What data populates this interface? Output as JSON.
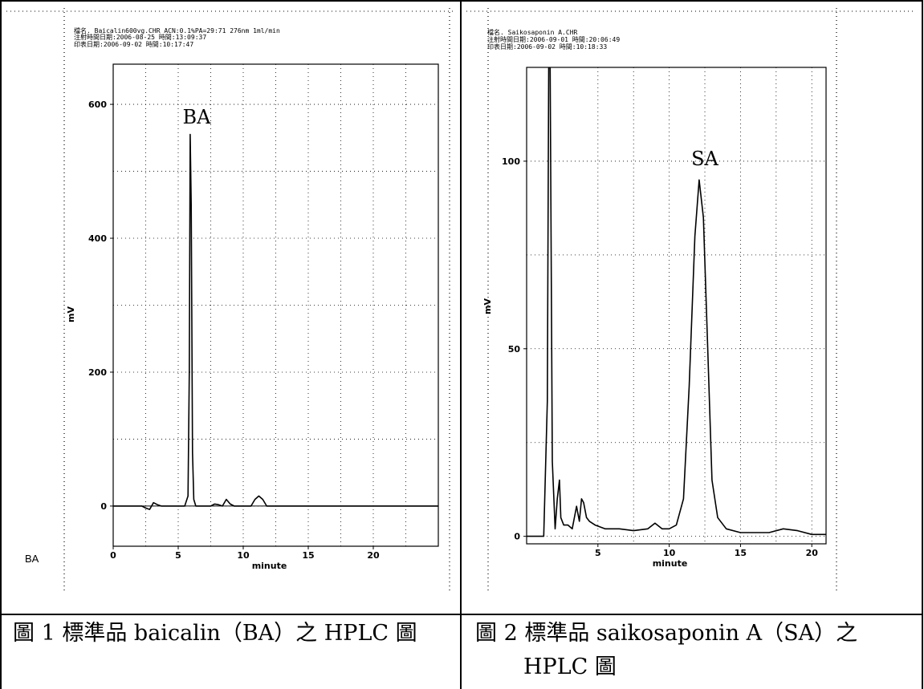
{
  "captions": {
    "left": "圖 1 標準品 baicalin（BA）之 HPLC 圖",
    "right_line1": "圖 2 標準品 saikosaponin A（SA）之",
    "right_line2": "HPLC 圖"
  },
  "corner_label": "BA",
  "chart_data": [
    {
      "type": "line",
      "header": [
        "檔名. Baicalin600vg.CHR ACN:0.1%PA=29:71 276nm 1ml/min",
        "注射時間日期:2006-08-25 時間:13:09:37",
        "印表日期:2006-09-02 時間:10:17:47"
      ],
      "peak_label": "BA",
      "xlabel": "minute",
      "ylabel": "mV",
      "xlim": [
        0,
        25
      ],
      "ylim": [
        -60,
        660
      ],
      "xticks": [
        0,
        5,
        10,
        15,
        20
      ],
      "yticks": [
        0,
        200,
        400,
        600
      ],
      "grid": true,
      "series": [
        {
          "x": [
            0,
            2.2,
            2.5,
            2.8,
            3.1,
            3.4,
            3.7,
            5.5,
            5.75,
            5.85,
            5.92,
            6.0,
            6.1,
            6.2,
            6.35,
            7.5,
            7.8,
            8.1,
            8.4,
            8.7,
            9.0,
            9.3,
            10.6,
            10.9,
            11.2,
            11.5,
            11.8,
            25
          ],
          "y": [
            0,
            0,
            -3,
            -5,
            5,
            2,
            0,
            0,
            15,
            200,
            555,
            450,
            80,
            10,
            0,
            0,
            3,
            2,
            0,
            10,
            3,
            0,
            0,
            10,
            15,
            10,
            0,
            0
          ]
        }
      ]
    },
    {
      "type": "line",
      "header": [
        "檔名. Saikosaponin A.CHR",
        "注射時間日期:2006-09-01 時間:20:06:49",
        "印表日期:2006-09-02 時間:10:18:33"
      ],
      "peak_label": "SA",
      "xlabel": "minute",
      "ylabel": "mV",
      "xlim": [
        0,
        21
      ],
      "ylim": [
        -2,
        125
      ],
      "xticks": [
        5,
        10,
        15,
        20
      ],
      "yticks": [
        0,
        50,
        100
      ],
      "grid": true,
      "series": [
        {
          "x": [
            0,
            1.2,
            1.45,
            1.55,
            1.65,
            1.8,
            2.0,
            2.15,
            2.3,
            2.4,
            2.6,
            2.9,
            3.2,
            3.5,
            3.7,
            3.85,
            4.0,
            4.2,
            4.4,
            4.8,
            5.5,
            6.5,
            7.5,
            8.5,
            9.0,
            9.5,
            10.0,
            10.5,
            11.0,
            11.4,
            11.8,
            12.1,
            12.4,
            12.7,
            13.0,
            13.4,
            14.0,
            15.0,
            16.0,
            17.0,
            18.0,
            19.0,
            20.0,
            21.0
          ],
          "y": [
            0,
            0,
            36,
            125,
            125,
            20,
            2,
            10,
            15,
            5,
            3,
            3,
            2,
            8,
            4,
            10,
            9,
            5,
            4,
            3,
            2,
            2,
            1.5,
            2,
            3.5,
            2,
            2,
            3,
            10,
            40,
            80,
            95,
            85,
            50,
            15,
            5,
            2,
            1,
            1,
            1,
            2,
            1.5,
            0.5,
            0.5
          ]
        }
      ]
    }
  ]
}
